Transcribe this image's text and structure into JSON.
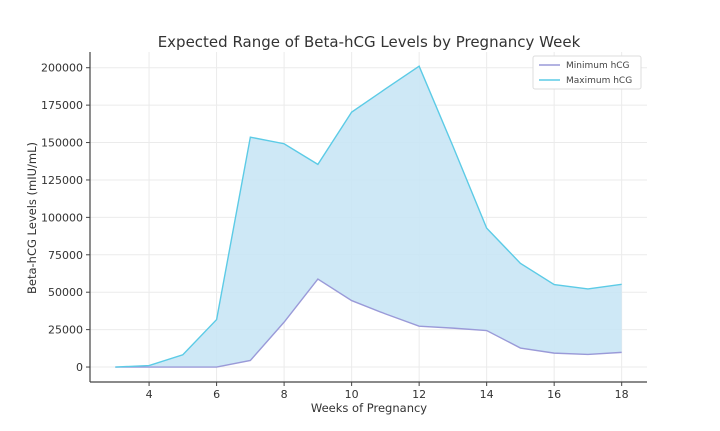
{
  "chart_data": {
    "type": "area",
    "title": "Expected Range of Beta-hCG Levels by Pregnancy Week",
    "xlabel": "Weeks of Pregnancy",
    "ylabel": "Beta-hCG Levels (mIU/mL)",
    "x": [
      3,
      4,
      5,
      6,
      7,
      8,
      9,
      10,
      11,
      12,
      13,
      14,
      15,
      16,
      17,
      18
    ],
    "xlim": [
      2.25,
      18.75
    ],
    "ylim": [
      -10000,
      210500
    ],
    "xticks": [
      4,
      6,
      8,
      10,
      12,
      14,
      16,
      18
    ],
    "yticks": [
      0,
      25000,
      50000,
      75000,
      100000,
      125000,
      150000,
      175000,
      200000
    ],
    "grid": true,
    "legend_position": "top-right",
    "fill_color": "#c9e6f5",
    "series": [
      {
        "name": "Minimum hCG",
        "color": "#9a9ad8",
        "values": [
          0,
          0,
          0,
          0,
          4400,
          30000,
          58800,
          44400,
          35500,
          27300,
          26000,
          24400,
          12700,
          9300,
          8400,
          9800
        ]
      },
      {
        "name": "Maximum hCG",
        "color": "#5ccbe6",
        "values": [
          0,
          1000,
          8200,
          31700,
          153600,
          149200,
          135400,
          170300,
          185800,
          201000,
          147600,
          92800,
          69300,
          55100,
          52200,
          55300
        ]
      }
    ]
  }
}
